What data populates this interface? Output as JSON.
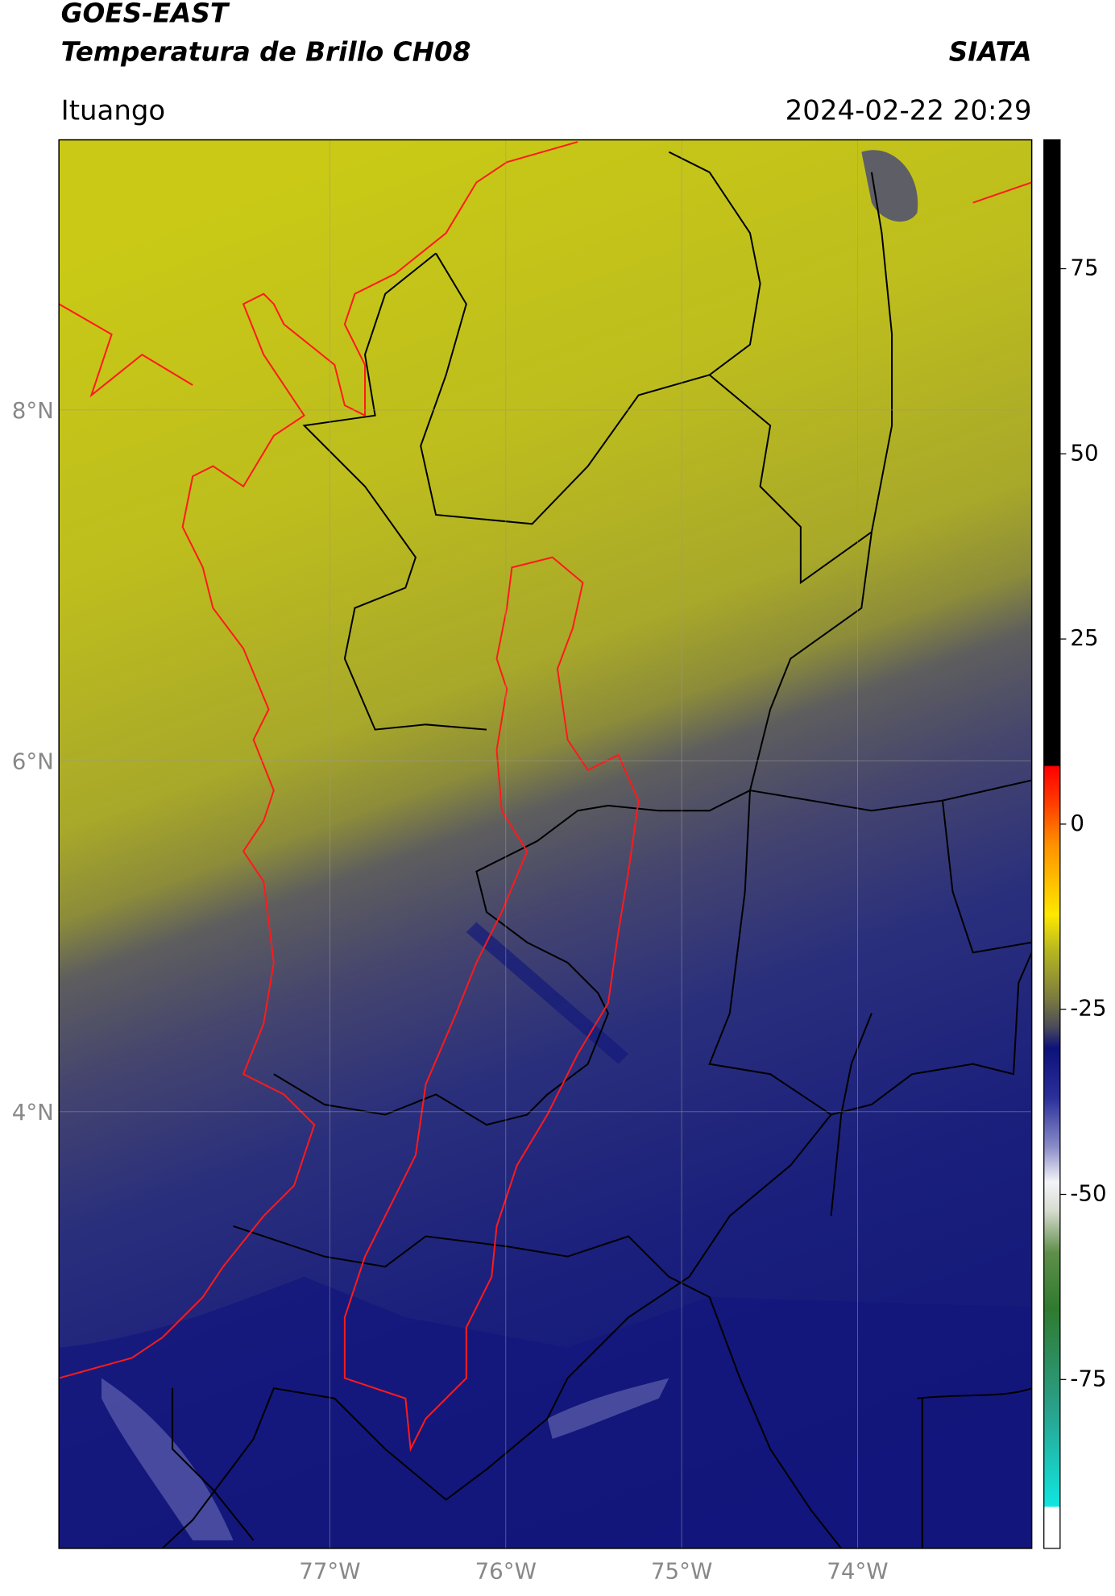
{
  "header": {
    "title_line1": "GOES-EAST",
    "title_line2": "Temperatura de Brillo CH08",
    "org": "SIATA",
    "region": "Ituango",
    "datetime": "2024-02-22 20:29"
  },
  "map": {
    "lonlim": [
      -78.54,
      -73.01
    ],
    "latlim": [
      1.51,
      9.54
    ],
    "lon_ticks": [
      {
        "value": -77,
        "label": "77°W"
      },
      {
        "value": -76,
        "label": "76°W"
      },
      {
        "value": -75,
        "label": "75°W"
      },
      {
        "value": -74,
        "label": "74°W"
      }
    ],
    "lat_ticks": [
      {
        "value": 8,
        "label": "8°N"
      },
      {
        "value": 6,
        "label": "6°N"
      },
      {
        "value": 4,
        "label": "4°N"
      }
    ]
  },
  "colorbar": {
    "lim": [
      -97.8,
      92.4
    ],
    "ticks": [
      75,
      50,
      25,
      0,
      -25,
      -50,
      -75
    ]
  }
}
